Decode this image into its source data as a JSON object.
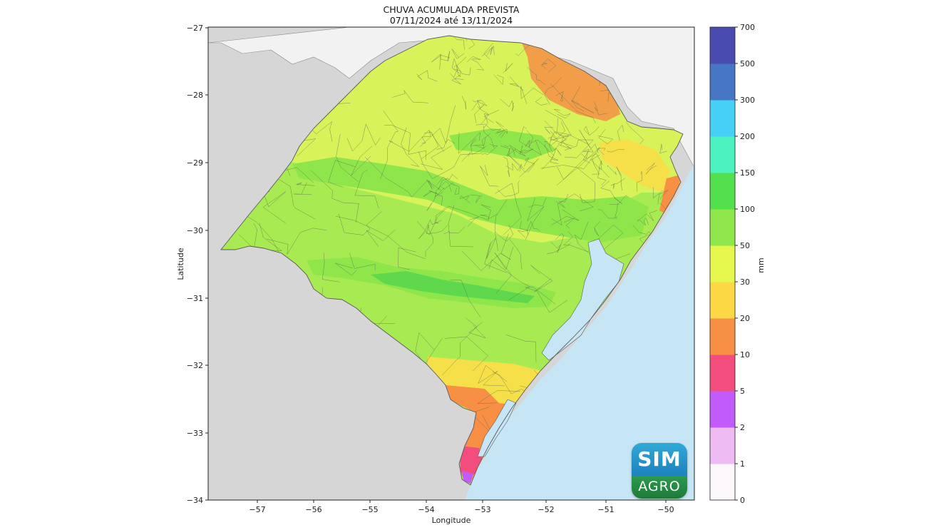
{
  "title": {
    "line1": "CHUVA ACUMULADA PREVISTA",
    "line2": "07/11/2024 até 13/11/2024"
  },
  "axes": {
    "xlabel": "Longitude",
    "ylabel": "Latitude",
    "x_ticks": [
      "−57",
      "−56",
      "−55",
      "−54",
      "−53",
      "−52",
      "−51",
      "−50"
    ],
    "y_ticks": [
      "−27",
      "−28",
      "−29",
      "−30",
      "−31",
      "−32",
      "−33",
      "−34"
    ]
  },
  "colorbar": {
    "unit": "mm",
    "levels": [
      "0",
      "1",
      "2",
      "5",
      "10",
      "20",
      "30",
      "50",
      "100",
      "150",
      "200",
      "300",
      "500",
      "700"
    ],
    "colors": [
      "#fbf7fb",
      "#eebcf3",
      "#c15cfb",
      "#f24d7d",
      "#f78f45",
      "#fbd844",
      "#e5f64d",
      "#8ee64b",
      "#53e04d",
      "#4cf2c0",
      "#45d1f5",
      "#4676c4",
      "#4a4bb0"
    ]
  },
  "map_colors": {
    "background_land": "#d6d6d6",
    "ocean": "#c6e6f6",
    "north_land": "#f2f2f2",
    "yellow_green": "#d8f25a",
    "light_green": "#a8ea52",
    "green": "#8ee64b",
    "dark_green": "#5fd84e",
    "yellow": "#f5e04a",
    "orange": "#f78f45",
    "pink": "#f24d7d",
    "purple": "#c15cfb",
    "border": "#5a5a5a"
  },
  "logo": {
    "top_text": "SIM",
    "bottom_text": "AGRO"
  }
}
